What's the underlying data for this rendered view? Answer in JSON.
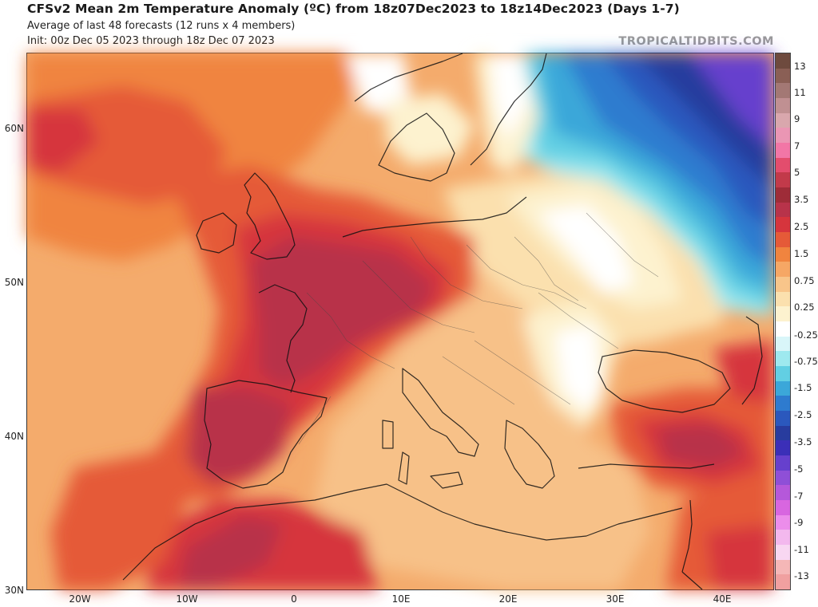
{
  "header": {
    "title": "CFSv2 Mean 2m Temperature Anomaly (ºC) from 18z07Dec2023 to 18z14Dec2023 (Days 1-7)",
    "subtitle_1": "Average of last 48 forecasts (12 runs x 4 members)",
    "subtitle_2": "Init: 00z Dec 05 2023 through 18z Dec 07 2023",
    "credit": "TROPICALTIDBITS.COM"
  },
  "map": {
    "lat_labels": [
      "60N",
      "50N",
      "40N",
      "30N"
    ],
    "lon_labels": [
      "20W",
      "10W",
      "0",
      "10E",
      "20E",
      "30E",
      "40E"
    ],
    "lat_range": [
      30,
      65
    ],
    "lon_range": [
      -25,
      45
    ]
  },
  "colorbar": {
    "labels": [
      "13",
      "11",
      "9",
      "7",
      "5",
      "3.5",
      "2.5",
      "1.5",
      "0.75",
      "0.25",
      "-0.25",
      "-0.75",
      "-1.5",
      "-2.5",
      "-3.5",
      "-5",
      "-7",
      "-9",
      "-11",
      "-13"
    ],
    "colors": [
      "#6e4a3e",
      "#8a5f55",
      "#a37874",
      "#c09092",
      "#d9a7ad",
      "#ea96b4",
      "#f276a6",
      "#e34d6d",
      "#c23a4a",
      "#9e2c38",
      "#b8334a",
      "#d6353d",
      "#e55a38",
      "#f0843f",
      "#f6a765",
      "#f8c58a",
      "#fbe0ae",
      "#fdf2cf",
      "#ffffff",
      "#d9f6f9",
      "#9ee9ef",
      "#62cfe3",
      "#3ba7d9",
      "#2e7bcf",
      "#2b58bd",
      "#283c9e",
      "#3b2fb8",
      "#6640cd",
      "#8f4fd7",
      "#b558da",
      "#d866e0",
      "#ec8deb",
      "#f3b8ee",
      "#f8d7f2",
      "#f5b7b7",
      "#f0a0a0"
    ]
  }
}
